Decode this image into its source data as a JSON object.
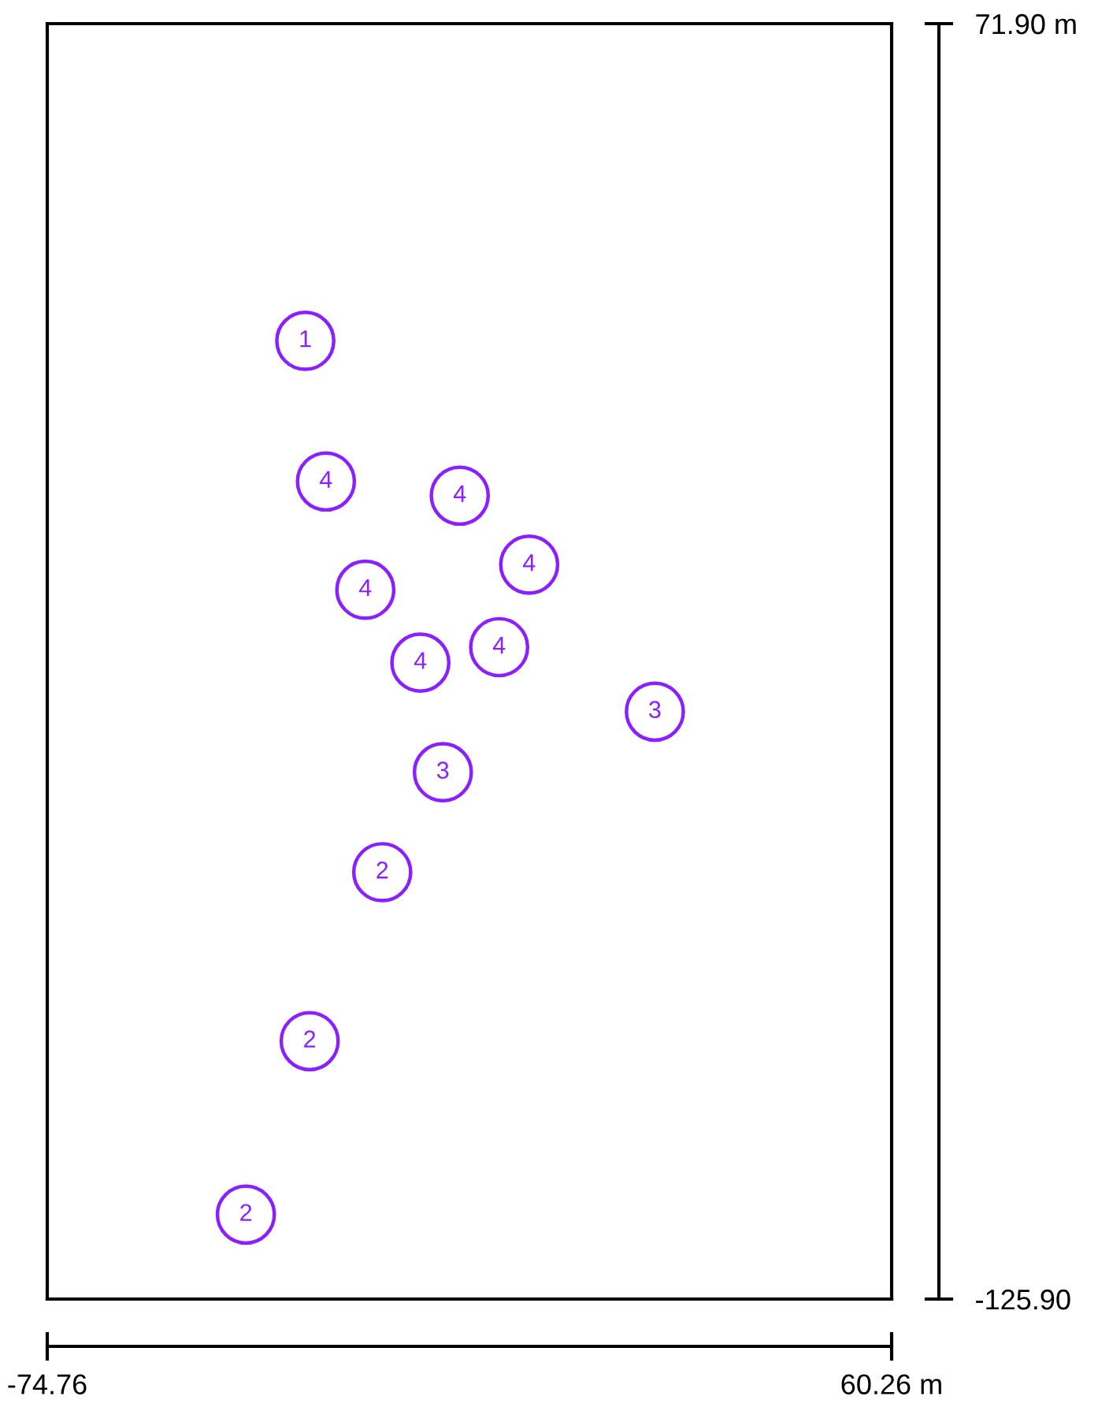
{
  "chart_data": {
    "type": "scatter",
    "xlim": [
      -74.76,
      60.26
    ],
    "ylim": [
      -125.9,
      71.9
    ],
    "xticks": [
      {
        "value": -74.76,
        "label": "-74.76"
      },
      {
        "value": 60.26,
        "label": "60.26 m"
      }
    ],
    "yticks": [
      {
        "value": -125.9,
        "label": "-125.90"
      },
      {
        "value": 71.9,
        "label": "71.90 m"
      }
    ],
    "marker": "circle",
    "series": [
      {
        "name": "1",
        "color": "#8b1fff",
        "x": [
          -33.5
        ],
        "values": [
          22.7
        ]
      },
      {
        "name": "2",
        "color": "#8b1fff",
        "x": [
          -21.2,
          -32.8,
          -43.0
        ],
        "values": [
          -59.7,
          -85.9,
          -112.8
        ]
      },
      {
        "name": "3",
        "color": "#8b1fff",
        "x": [
          22.4,
          -11.5
        ],
        "values": [
          -34.8,
          -44.2
        ]
      },
      {
        "name": "4",
        "color": "#8b1fff",
        "x": [
          -30.2,
          -8.8,
          2.3,
          -23.9,
          -2.5,
          -15.1
        ],
        "values": [
          0.9,
          -1.3,
          -12.0,
          -15.9,
          -24.8,
          -27.2
        ]
      }
    ]
  }
}
